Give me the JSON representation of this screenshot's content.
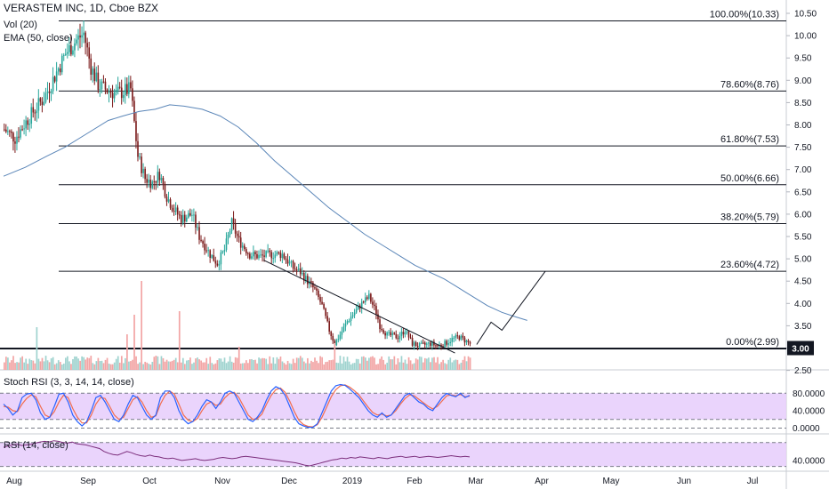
{
  "header": {
    "title": "VERASTEM INC, 1D, Cboe BZX",
    "vol_label": "Vol (20)",
    "ema_label": "EMA (50, close)"
  },
  "price_badge": "3.00",
  "chart_data": [
    {
      "type": "candlestick",
      "title": "VERASTEM INC, 1D, Cboe BZX",
      "ylim": [
        2.35,
        10.6
      ],
      "y_ticks": [
        "10.50",
        "10.00",
        "9.50",
        "9.00",
        "8.50",
        "8.00",
        "7.50",
        "7.00",
        "6.50",
        "6.00",
        "5.50",
        "5.00",
        "4.50",
        "4.00",
        "3.50",
        "3.00",
        "2.50"
      ],
      "x_ticks": [
        "Aug",
        "Sep",
        "Oct",
        "Nov",
        "Dec",
        "2019",
        "Feb",
        "Mar",
        "Apr",
        "May",
        "Jun",
        "Jul"
      ],
      "last_price": 3.0,
      "colors": {
        "up": "#26a69a",
        "down": "#7b1a1a",
        "ema": "#5b86b8",
        "vol_up": "#9fd3cf",
        "vol_down": "#f2a4a4"
      },
      "fib_levels": [
        {
          "label": "100.00%(10.33)",
          "value": 10.33
        },
        {
          "label": "78.60%(8.76)",
          "value": 8.76
        },
        {
          "label": "61.80%(7.53)",
          "value": 7.53
        },
        {
          "label": "50.00%(6.66)",
          "value": 6.66
        },
        {
          "label": "38.20%(5.79)",
          "value": 5.79
        },
        {
          "label": "23.60%(4.72)",
          "value": 4.72
        },
        {
          "label": "0.00%(2.99)",
          "value": 2.99
        }
      ],
      "ema_path": [
        [
          0,
          6.85
        ],
        [
          12,
          7.05
        ],
        [
          24,
          7.3
        ],
        [
          34,
          7.5
        ],
        [
          46,
          7.8
        ],
        [
          58,
          8.1
        ],
        [
          66,
          8.2
        ],
        [
          75,
          8.3
        ],
        [
          84,
          8.35
        ],
        [
          92,
          8.45
        ],
        [
          100,
          8.42
        ],
        [
          110,
          8.35
        ],
        [
          120,
          8.2
        ],
        [
          130,
          7.95
        ],
        [
          140,
          7.6
        ],
        [
          150,
          7.2
        ],
        [
          160,
          6.85
        ],
        [
          170,
          6.5
        ],
        [
          180,
          6.15
        ],
        [
          190,
          5.85
        ],
        [
          200,
          5.55
        ],
        [
          210,
          5.3
        ],
        [
          220,
          5.05
        ],
        [
          228,
          4.85
        ],
        [
          236,
          4.7
        ],
        [
          244,
          4.55
        ],
        [
          250,
          4.4
        ],
        [
          256,
          4.25
        ],
        [
          262,
          4.1
        ],
        [
          268,
          3.95
        ],
        [
          276,
          3.8
        ],
        [
          282,
          3.72
        ],
        [
          290,
          3.62
        ]
      ],
      "trendline": [
        [
          144,
          4.97
        ],
        [
          250,
          2.89
        ]
      ],
      "projection": [
        [
          262,
          3.08
        ],
        [
          270,
          3.58
        ],
        [
          276,
          3.4
        ],
        [
          300,
          4.72
        ]
      ]
    },
    {
      "type": "line",
      "title": "Stoch RSI (3, 3, 14, 14, close)",
      "ylim": [
        -5,
        105
      ],
      "y_ticks": [
        "80.0000",
        "40.0000",
        "0.0000"
      ],
      "band": [
        20,
        80
      ],
      "colors": {
        "k": "#2962ff",
        "d": "#f26d50",
        "band": "#e6cdfb"
      },
      "k": [
        55,
        45,
        30,
        40,
        70,
        78,
        80,
        65,
        35,
        20,
        25,
        50,
        78,
        80,
        60,
        30,
        15,
        5,
        15,
        40,
        70,
        75,
        60,
        40,
        20,
        15,
        30,
        55,
        75,
        70,
        50,
        30,
        20,
        30,
        70,
        85,
        85,
        70,
        40,
        20,
        10,
        15,
        30,
        50,
        65,
        60,
        45,
        60,
        80,
        85,
        80,
        60,
        40,
        20,
        15,
        25,
        40,
        65,
        85,
        95,
        90,
        75,
        50,
        25,
        10,
        5,
        2,
        2,
        10,
        35,
        60,
        85,
        97,
        100,
        98,
        90,
        80,
        70,
        55,
        40,
        30,
        25,
        35,
        25,
        30,
        45,
        60,
        75,
        80,
        70,
        60,
        55,
        45,
        40,
        55,
        70,
        80,
        75,
        72,
        80,
        70,
        75
      ],
      "d": [
        50,
        48,
        40,
        38,
        55,
        68,
        76,
        72,
        50,
        30,
        25,
        38,
        60,
        75,
        70,
        45,
        25,
        12,
        12,
        30,
        55,
        70,
        68,
        50,
        30,
        20,
        25,
        45,
        65,
        72,
        60,
        40,
        25,
        28,
        55,
        75,
        85,
        78,
        55,
        30,
        18,
        15,
        22,
        40,
        55,
        60,
        52,
        55,
        70,
        80,
        82,
        70,
        50,
        30,
        20,
        22,
        32,
        55,
        75,
        88,
        92,
        82,
        62,
        38,
        18,
        8,
        4,
        3,
        8,
        25,
        48,
        72,
        88,
        97,
        99,
        94,
        86,
        76,
        62,
        48,
        36,
        30,
        32,
        28,
        30,
        40,
        55,
        68,
        76,
        74,
        66,
        58,
        50,
        44,
        50,
        62,
        74,
        76,
        74,
        77,
        72,
        73
      ]
    },
    {
      "type": "line",
      "title": "RSI (14, close)",
      "ylim": [
        25,
        80
      ],
      "y_ticks": [
        "40.0000"
      ],
      "band": [
        30,
        70
      ],
      "colors": {
        "line": "#7b2d7b",
        "band": "#e6cdfb"
      },
      "values": [
        62,
        64,
        66,
        67,
        65,
        66,
        67,
        69,
        71,
        72,
        71,
        73,
        72,
        70,
        69,
        71,
        68,
        67,
        66,
        64,
        62,
        60,
        55,
        52,
        50,
        49,
        52,
        55,
        53,
        50,
        48,
        47,
        49,
        47,
        46,
        44,
        43,
        44,
        42,
        40,
        41,
        42,
        43,
        41,
        40,
        41,
        42,
        44,
        45,
        44,
        43,
        44,
        46,
        47,
        46,
        45,
        44,
        43,
        42,
        41,
        40,
        39,
        38,
        37,
        36,
        34,
        32,
        31,
        33,
        35,
        37,
        39,
        41,
        42,
        44,
        43,
        45,
        44,
        46,
        45,
        44,
        43,
        45,
        44,
        43,
        45,
        46,
        47,
        45,
        46,
        47,
        45,
        46,
        47,
        46,
        45,
        46,
        47,
        48,
        47,
        46,
        47,
        46
      ]
    }
  ]
}
